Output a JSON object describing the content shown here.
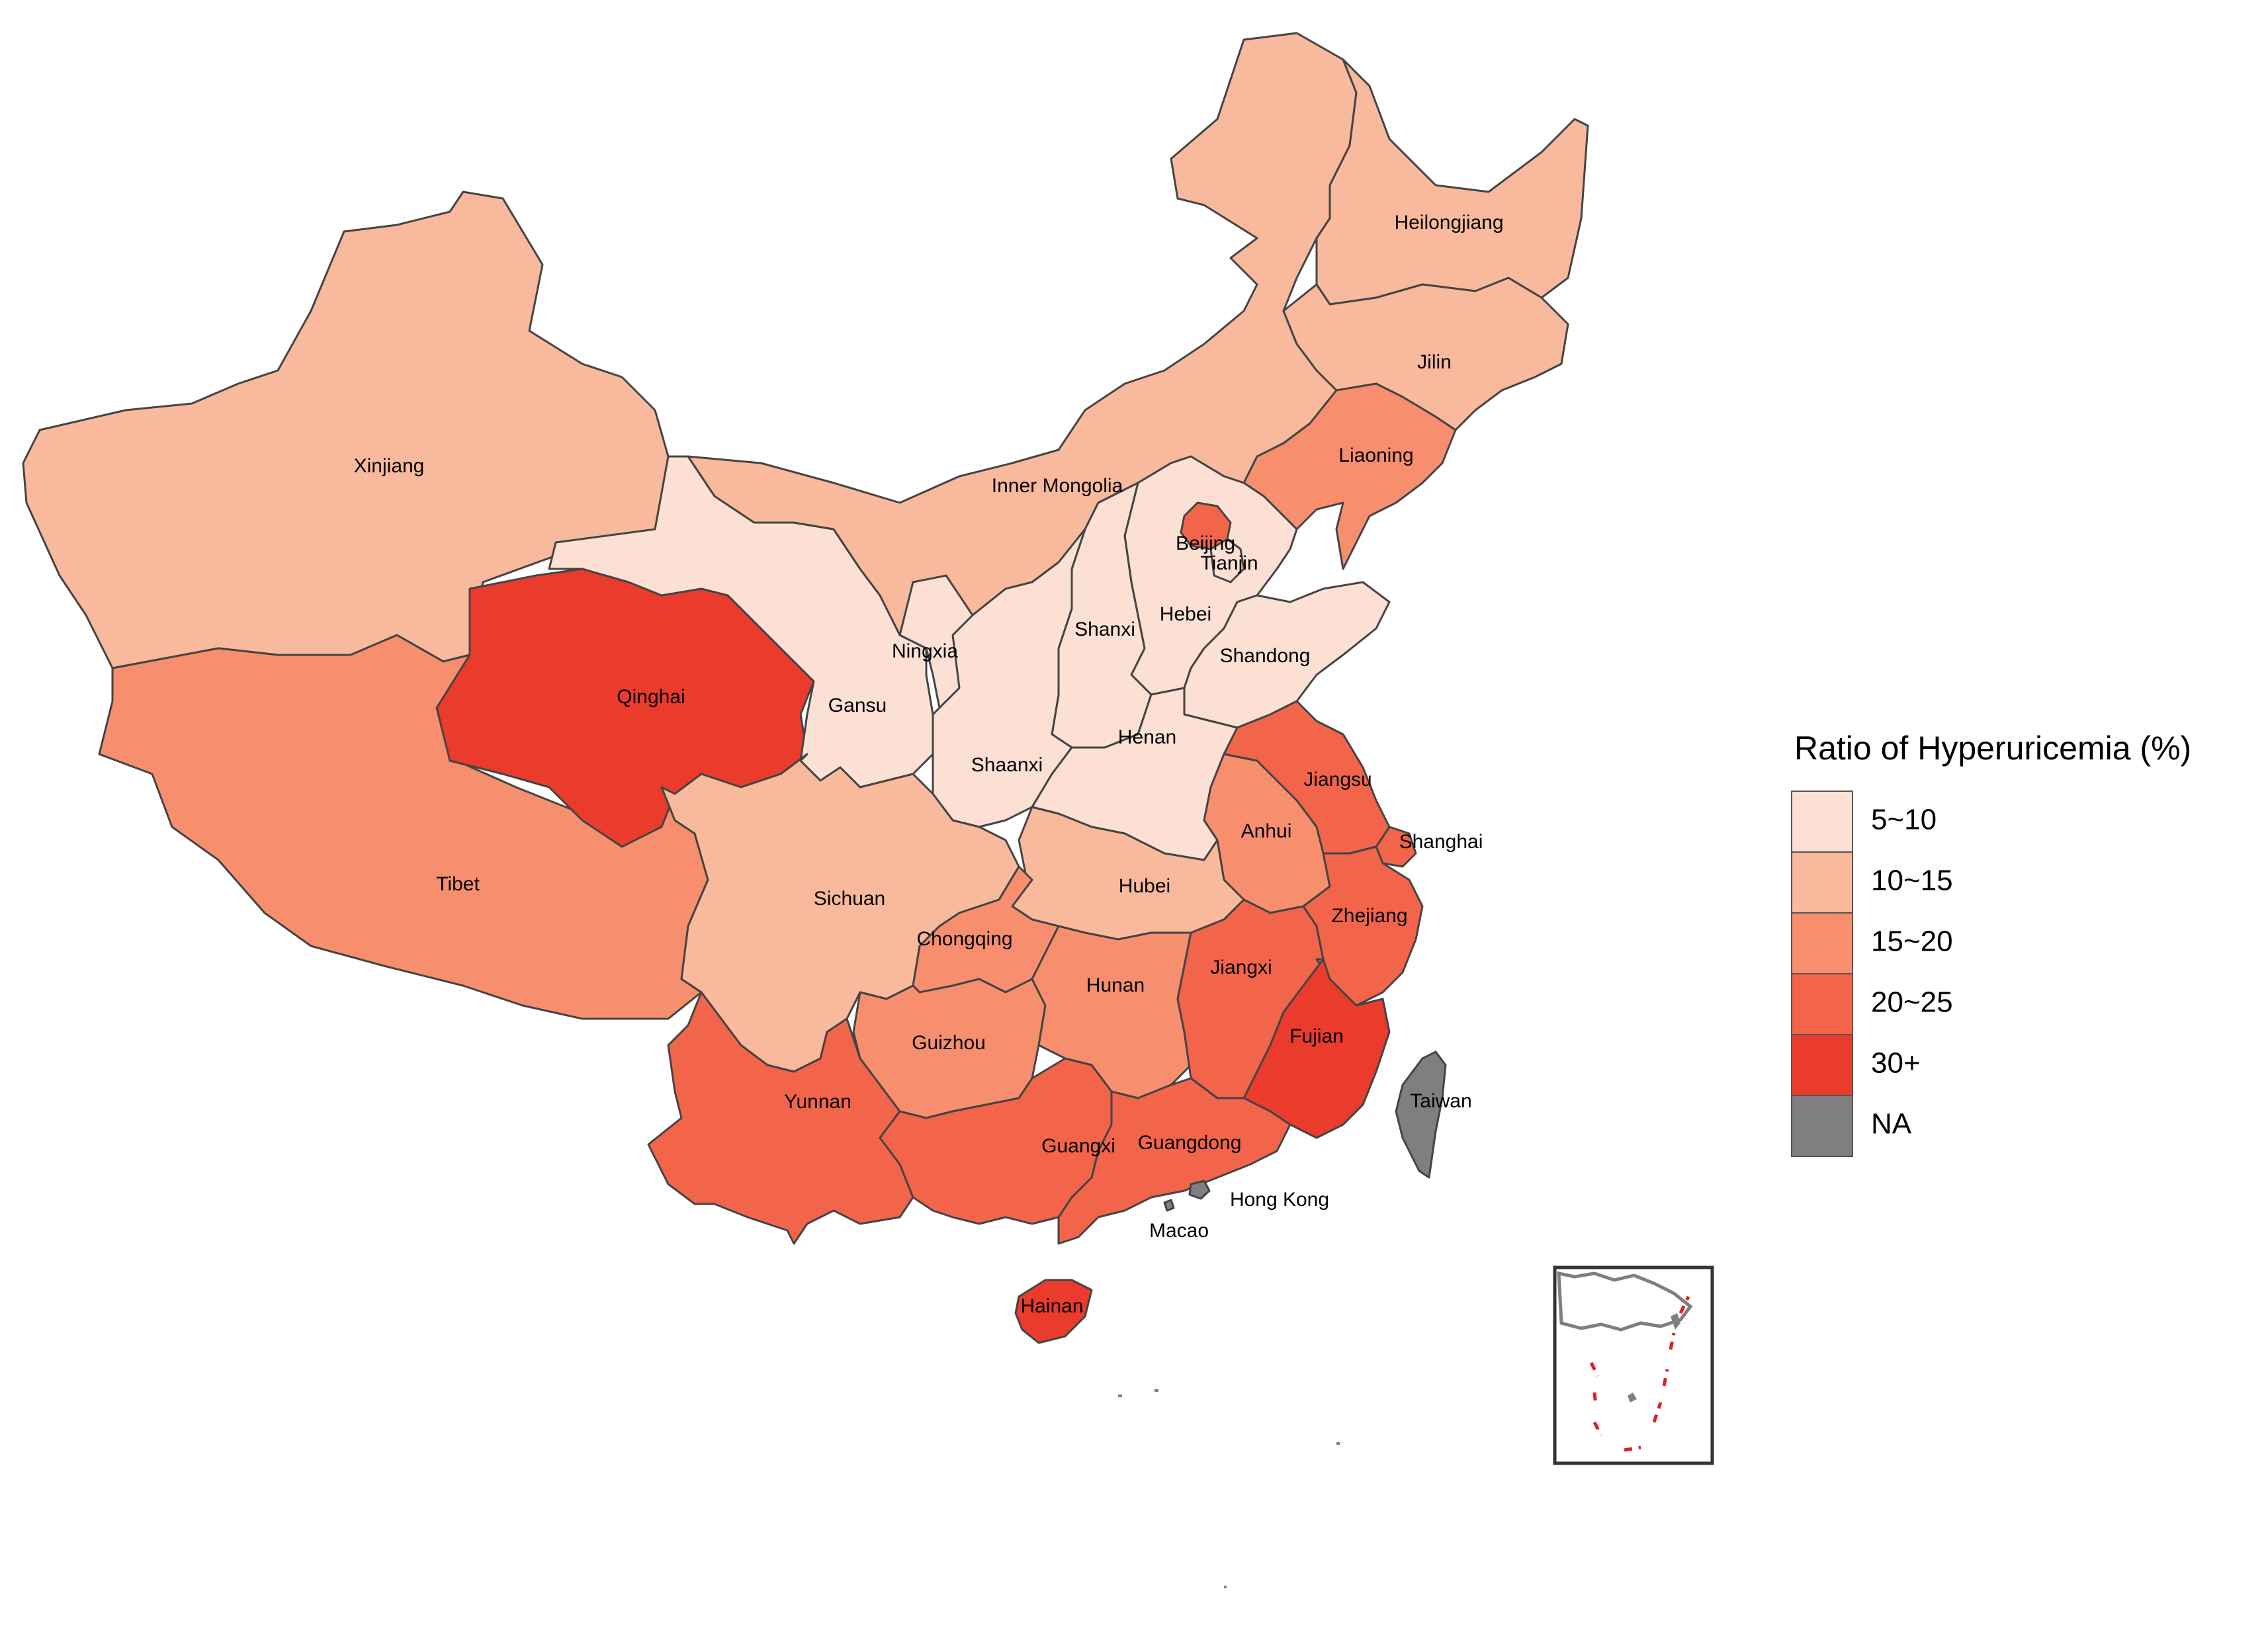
{
  "legend": {
    "title": "Ratio of Hyperuricemia (%)",
    "items": [
      {
        "label": "5~10",
        "color": "#fce0d4"
      },
      {
        "label": "10~15",
        "color": "#f9b99c"
      },
      {
        "label": "15~20",
        "color": "#f78f6f"
      },
      {
        "label": "20~25",
        "color": "#f2654b"
      },
      {
        "label": "30+",
        "color": "#ea3b2c"
      },
      {
        "label": "NA",
        "color": "#7f7f7f"
      }
    ]
  },
  "provinces": {
    "xinjiang": {
      "name": "Xinjiang",
      "category": "10~15"
    },
    "tibet": {
      "name": "Tibet",
      "category": "15~20"
    },
    "qinghai": {
      "name": "Qinghai",
      "category": "30+"
    },
    "gansu": {
      "name": "Gansu",
      "category": "5~10"
    },
    "inner_mongolia": {
      "name": "Inner Mongolia",
      "category": "10~15"
    },
    "heilongjiang": {
      "name": "Heilongjiang",
      "category": "10~15"
    },
    "jilin": {
      "name": "Jilin",
      "category": "10~15"
    },
    "liaoning": {
      "name": "Liaoning",
      "category": "15~20"
    },
    "beijing": {
      "name": "Beijing",
      "category": "20~25"
    },
    "tianjin": {
      "name": "Tianjin",
      "category": "5~10"
    },
    "hebei": {
      "name": "Hebei",
      "category": "5~10"
    },
    "shanxi": {
      "name": "Shanxi",
      "category": "5~10"
    },
    "ningxia": {
      "name": "Ningxia",
      "category": "5~10"
    },
    "shaanxi": {
      "name": "Shaanxi",
      "category": "5~10"
    },
    "shandong": {
      "name": "Shandong",
      "category": "5~10"
    },
    "henan": {
      "name": "Henan",
      "category": "5~10"
    },
    "jiangsu": {
      "name": "Jiangsu",
      "category": "20~25"
    },
    "shanghai": {
      "name": "Shanghai",
      "category": "20~25"
    },
    "anhui": {
      "name": "Anhui",
      "category": "15~20"
    },
    "hubei": {
      "name": "Hubei",
      "category": "10~15"
    },
    "sichuan": {
      "name": "Sichuan",
      "category": "10~15"
    },
    "chongqing": {
      "name": "Chongqing",
      "category": "15~20"
    },
    "zhejiang": {
      "name": "Zhejiang",
      "category": "20~25"
    },
    "jiangxi": {
      "name": "Jiangxi",
      "category": "20~25"
    },
    "hunan": {
      "name": "Hunan",
      "category": "15~20"
    },
    "guizhou": {
      "name": "Guizhou",
      "category": "15~20"
    },
    "yunnan": {
      "name": "Yunnan",
      "category": "20~25"
    },
    "guangxi": {
      "name": "Guangxi",
      "category": "20~25"
    },
    "guangdong": {
      "name": "Guangdong",
      "category": "20~25"
    },
    "fujian": {
      "name": "Fujian",
      "category": "30+"
    },
    "hainan": {
      "name": "Hainan",
      "category": "30+"
    },
    "taiwan": {
      "name": "Taiwan",
      "category": "NA"
    },
    "hong_kong": {
      "name": "Hong Kong",
      "category": "NA"
    },
    "macao": {
      "name": "Macao",
      "category": "NA"
    }
  }
}
